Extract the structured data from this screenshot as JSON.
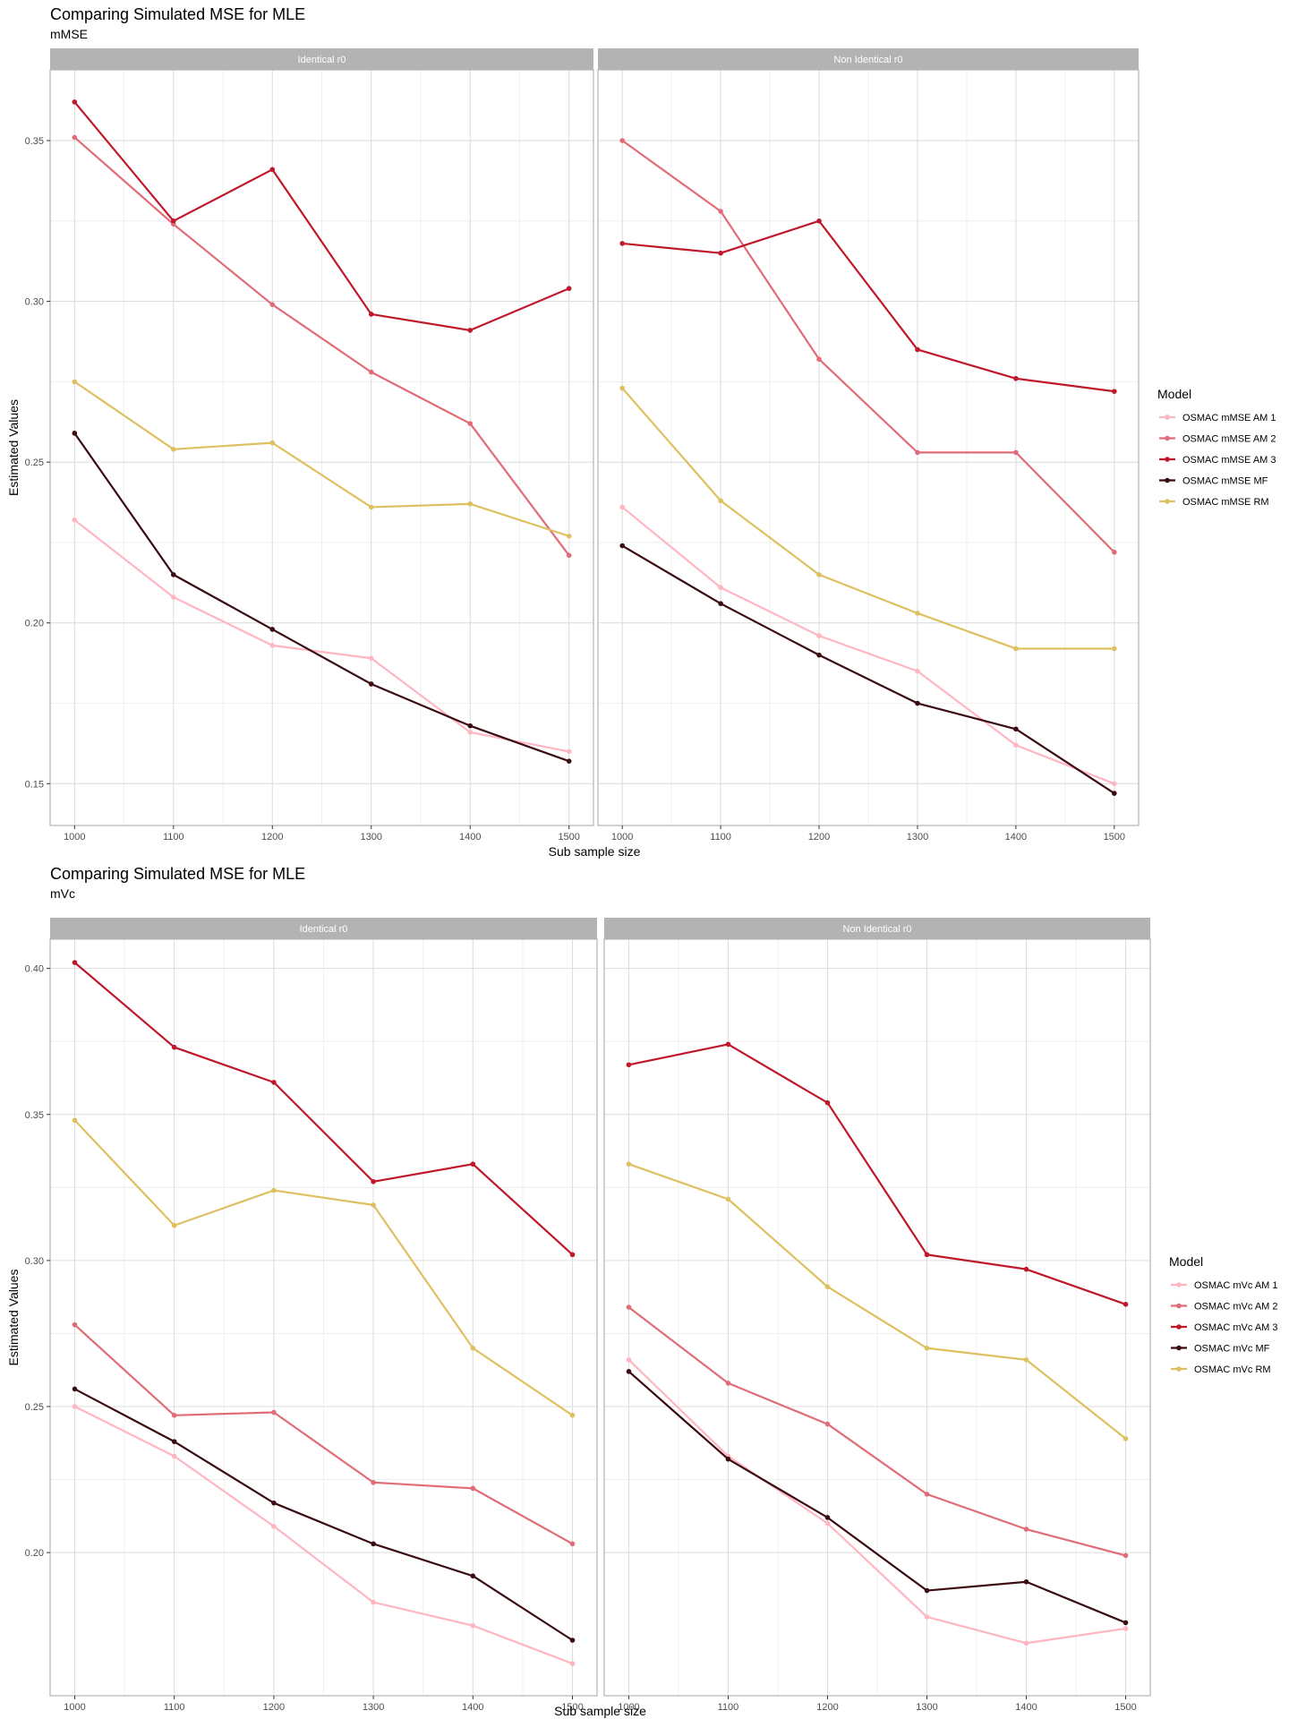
{
  "chart_data": [
    {
      "type": "line",
      "title": "Comparing Simulated MSE for MLE",
      "subtitle": "mMSE",
      "xlabel": "Sub sample size",
      "ylabel": "Estimated Values",
      "x": [
        1000,
        1100,
        1200,
        1300,
        1400,
        1500
      ],
      "ylim": [
        0.137,
        0.372
      ],
      "yticks": [
        0.15,
        0.2,
        0.25,
        0.3,
        0.35
      ],
      "ytick_labels": [
        "0.15",
        "0.20",
        "0.25",
        "0.30",
        "0.35"
      ],
      "grid": true,
      "legend": {
        "title": "Model",
        "position": "right"
      },
      "panels": [
        {
          "label": "Identical r0",
          "series": [
            {
              "name": "OSMAC mMSE AM 1",
              "color": "#ffb6c1",
              "values": [
                0.232,
                0.208,
                0.193,
                0.189,
                0.166,
                0.16
              ]
            },
            {
              "name": "OSMAC mMSE AM 2",
              "color": "#e06c78",
              "values": [
                0.351,
                0.324,
                0.299,
                0.278,
                0.262,
                0.221
              ]
            },
            {
              "name": "OSMAC mMSE AM 3",
              "color": "#c0182b",
              "values": [
                0.362,
                0.325,
                0.341,
                0.296,
                0.291,
                0.304
              ]
            },
            {
              "name": "OSMAC mMSE MF",
              "color": "#3a0b10",
              "values": [
                0.259,
                0.215,
                0.198,
                0.181,
                0.168,
                0.157
              ]
            },
            {
              "name": "OSMAC mMSE RM",
              "color": "#dfc060",
              "values": [
                0.275,
                0.254,
                0.256,
                0.236,
                0.237,
                0.227
              ]
            }
          ]
        },
        {
          "label": "Non Identical r0",
          "series": [
            {
              "name": "OSMAC mMSE AM 1",
              "color": "#ffb6c1",
              "values": [
                0.236,
                0.211,
                0.196,
                0.185,
                0.162,
                0.15
              ]
            },
            {
              "name": "OSMAC mMSE AM 2",
              "color": "#e06c78",
              "values": [
                0.35,
                0.328,
                0.282,
                0.253,
                0.253,
                0.222
              ]
            },
            {
              "name": "OSMAC mMSE AM 3",
              "color": "#c0182b",
              "values": [
                0.318,
                0.315,
                0.325,
                0.285,
                0.276,
                0.272
              ]
            },
            {
              "name": "OSMAC mMSE MF",
              "color": "#3a0b10",
              "values": [
                0.224,
                0.206,
                0.19,
                0.175,
                0.167,
                0.147
              ]
            },
            {
              "name": "OSMAC mMSE RM",
              "color": "#dfc060",
              "values": [
                0.273,
                0.238,
                0.215,
                0.203,
                0.192,
                0.192
              ]
            }
          ]
        }
      ]
    },
    {
      "type": "line",
      "title": "Comparing Simulated MSE for MLE",
      "subtitle": "mVc",
      "xlabel": "Sub sample size",
      "ylabel": "Estimated Values",
      "x": [
        1000,
        1100,
        1200,
        1300,
        1400,
        1500
      ],
      "ylim": [
        0.151,
        0.41
      ],
      "yticks": [
        0.2,
        0.25,
        0.3,
        0.35,
        0.4
      ],
      "ytick_labels": [
        "0.20",
        "0.25",
        "0.30",
        "0.35",
        "0.40"
      ],
      "grid": true,
      "legend": {
        "title": "Model",
        "position": "right"
      },
      "panels": [
        {
          "label": "Identical r0",
          "series": [
            {
              "name": "OSMAC mVc AM 1",
              "color": "#ffb6c1",
              "values": [
                0.25,
                0.233,
                0.209,
                0.183,
                0.175,
                0.162
              ]
            },
            {
              "name": "OSMAC mVc AM 2",
              "color": "#e06c78",
              "values": [
                0.278,
                0.247,
                0.248,
                0.224,
                0.222,
                0.203
              ]
            },
            {
              "name": "OSMAC mVc AM 3",
              "color": "#c0182b",
              "values": [
                0.402,
                0.373,
                0.361,
                0.327,
                0.333,
                0.302
              ]
            },
            {
              "name": "OSMAC mVc MF",
              "color": "#3a0b10",
              "values": [
                0.256,
                0.238,
                0.217,
                0.203,
                0.192,
                0.17
              ]
            },
            {
              "name": "OSMAC mVc RM",
              "color": "#dfc060",
              "values": [
                0.348,
                0.312,
                0.324,
                0.319,
                0.27,
                0.247
              ]
            }
          ]
        },
        {
          "label": "Non Identical r0",
          "series": [
            {
              "name": "OSMAC mVc AM 1",
              "color": "#ffb6c1",
              "values": [
                0.266,
                0.233,
                0.21,
                0.178,
                0.169,
                0.174
              ]
            },
            {
              "name": "OSMAC mVc AM 2",
              "color": "#e06c78",
              "values": [
                0.284,
                0.258,
                0.244,
                0.22,
                0.208,
                0.199
              ]
            },
            {
              "name": "OSMAC mVc AM 3",
              "color": "#c0182b",
              "values": [
                0.367,
                0.374,
                0.354,
                0.302,
                0.297,
                0.285
              ]
            },
            {
              "name": "OSMAC mVc MF",
              "color": "#3a0b10",
              "values": [
                0.262,
                0.232,
                0.212,
                0.187,
                0.19,
                0.176
              ]
            },
            {
              "name": "OSMAC mVc RM",
              "color": "#dfc060",
              "values": [
                0.333,
                0.321,
                0.291,
                0.27,
                0.266,
                0.239
              ]
            }
          ]
        }
      ]
    }
  ]
}
